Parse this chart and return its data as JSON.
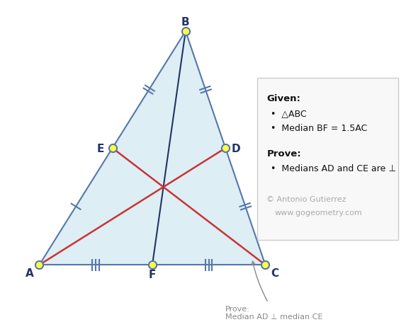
{
  "A": [
    30,
    370
  ],
  "B": [
    250,
    18
  ],
  "C": [
    370,
    370
  ],
  "triangle_fill": "#ddeef5",
  "triangle_edge_color": "#5577aa",
  "median_color_red": "#cc3333",
  "median_BF_color": "#223366",
  "blue_lines_color": "#5577aa",
  "point_color": "#ffff44",
  "point_edge_color": "#5577aa",
  "point_size": 8,
  "given_title": "Given:",
  "given_items": [
    "△ABC",
    "Median BF = 1.5AC"
  ],
  "prove_title": "Prove:",
  "prove_items": [
    "Medians AD and CE are ⊥"
  ],
  "copyright": "© Antonio Gutierrez",
  "website": "www.gogeometry.com",
  "bottom_label_1": "Prove:",
  "bottom_label_2": "Median AD ⊥ median CE",
  "xlim": [
    -20,
    580
  ],
  "ylim": [
    456,
    -30
  ]
}
